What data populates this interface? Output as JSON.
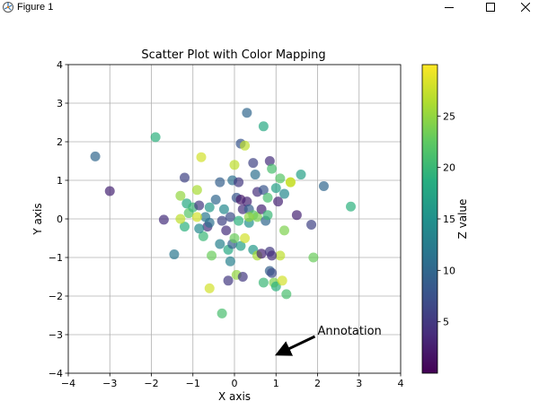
{
  "window": {
    "title": "Figure 1",
    "app_icon": "matplotlib-figure-icon",
    "controls": {
      "minimize_icon": "minimize-icon",
      "maximize_icon": "maximize-icon",
      "close_icon": "close-icon"
    }
  },
  "chart_data": {
    "type": "scatter",
    "title": "Scatter Plot with Color Mapping",
    "xlabel": "X axis",
    "ylabel": "Y axis",
    "xlim": [
      -4,
      4
    ],
    "ylim": [
      -4,
      4
    ],
    "xticks": [
      -4,
      -3,
      -2,
      -1,
      0,
      1,
      2,
      3,
      4
    ],
    "yticks": [
      -4,
      -3,
      -2,
      -1,
      0,
      1,
      2,
      3,
      4
    ],
    "xtick_labels": [
      "−4",
      "−3",
      "−2",
      "−1",
      "0",
      "1",
      "2",
      "3",
      "4"
    ],
    "ytick_labels": [
      "−4",
      "−3",
      "−2",
      "−1",
      "0",
      "1",
      "2",
      "3",
      "4"
    ],
    "grid": true,
    "colormap": "viridis",
    "marker_alpha": 0.7,
    "colorbar": {
      "label": "Z value",
      "range": [
        0,
        30
      ],
      "ticks": [
        5,
        10,
        15,
        20,
        25
      ],
      "tick_labels": [
        "5",
        "10",
        "15",
        "20",
        "25"
      ]
    },
    "annotation": {
      "text": "Annotation",
      "xy": [
        1.05,
        -3.5
      ],
      "xytext": [
        2.0,
        -3.0
      ]
    },
    "points": [
      {
        "x": -3.35,
        "y": 1.62,
        "z": 10
      },
      {
        "x": -3.0,
        "y": 0.72,
        "z": 3
      },
      {
        "x": -1.9,
        "y": 2.12,
        "z": 19
      },
      {
        "x": -1.7,
        "y": -0.02,
        "z": 4
      },
      {
        "x": -1.45,
        "y": -0.92,
        "z": 12
      },
      {
        "x": -1.3,
        "y": 0.6,
        "z": 25
      },
      {
        "x": -1.2,
        "y": 1.07,
        "z": 6
      },
      {
        "x": -1.2,
        "y": -0.2,
        "z": 19
      },
      {
        "x": -1.15,
        "y": 0.4,
        "z": 18
      },
      {
        "x": -1.1,
        "y": 0.15,
        "z": 22
      },
      {
        "x": -1.3,
        "y": 0.0,
        "z": 27
      },
      {
        "x": -1.0,
        "y": 0.3,
        "z": 20
      },
      {
        "x": -0.9,
        "y": 0.75,
        "z": 26
      },
      {
        "x": -0.85,
        "y": 0.35,
        "z": 5
      },
      {
        "x": -0.8,
        "y": 1.6,
        "z": 28
      },
      {
        "x": -0.75,
        "y": -0.45,
        "z": 20
      },
      {
        "x": -0.7,
        "y": 0.05,
        "z": 12
      },
      {
        "x": -0.65,
        "y": -0.2,
        "z": 4
      },
      {
        "x": -0.6,
        "y": 0.3,
        "z": 16
      },
      {
        "x": -0.6,
        "y": -1.8,
        "z": 28
      },
      {
        "x": -0.55,
        "y": -0.95,
        "z": 23
      },
      {
        "x": -0.85,
        "y": -0.25,
        "z": 14
      },
      {
        "x": -0.6,
        "y": -0.1,
        "z": 11
      },
      {
        "x": -0.45,
        "y": 0.5,
        "z": 10
      },
      {
        "x": -0.35,
        "y": 0.95,
        "z": 9
      },
      {
        "x": -0.35,
        "y": -0.65,
        "z": 13
      },
      {
        "x": -0.3,
        "y": -0.05,
        "z": 6
      },
      {
        "x": -0.3,
        "y": -2.45,
        "z": 21
      },
      {
        "x": -0.25,
        "y": 0.25,
        "z": 14
      },
      {
        "x": -0.2,
        "y": -0.3,
        "z": 4
      },
      {
        "x": -0.15,
        "y": -0.8,
        "z": 18
      },
      {
        "x": -0.15,
        "y": -1.6,
        "z": 5
      },
      {
        "x": -0.1,
        "y": 0.05,
        "z": 7
      },
      {
        "x": -0.1,
        "y": -1.1,
        "z": 13
      },
      {
        "x": -0.05,
        "y": 1.0,
        "z": 11
      },
      {
        "x": -0.05,
        "y": -0.65,
        "z": 9
      },
      {
        "x": 0.0,
        "y": 1.4,
        "z": 27
      },
      {
        "x": 0.0,
        "y": -0.5,
        "z": 23
      },
      {
        "x": 0.05,
        "y": 0.55,
        "z": 8
      },
      {
        "x": 0.05,
        "y": -1.45,
        "z": 25
      },
      {
        "x": 0.1,
        "y": 0.95,
        "z": 5
      },
      {
        "x": 0.1,
        "y": -0.05,
        "z": 19
      },
      {
        "x": 0.15,
        "y": 1.95,
        "z": 8
      },
      {
        "x": 0.15,
        "y": 0.5,
        "z": 2
      },
      {
        "x": 0.15,
        "y": -0.7,
        "z": 17
      },
      {
        "x": 0.2,
        "y": 0.25,
        "z": 4
      },
      {
        "x": 0.2,
        "y": -1.5,
        "z": 5
      },
      {
        "x": 0.25,
        "y": 1.9,
        "z": 27
      },
      {
        "x": 0.25,
        "y": -0.5,
        "z": 28
      },
      {
        "x": 0.3,
        "y": 2.75,
        "z": 10
      },
      {
        "x": 0.3,
        "y": 0.45,
        "z": 3
      },
      {
        "x": 0.35,
        "y": 0.25,
        "z": 9
      },
      {
        "x": 0.35,
        "y": -0.1,
        "z": 15
      },
      {
        "x": 0.45,
        "y": 1.45,
        "z": 6
      },
      {
        "x": 0.45,
        "y": 0.1,
        "z": 22
      },
      {
        "x": 0.45,
        "y": -0.8,
        "z": 16
      },
      {
        "x": 0.5,
        "y": 1.15,
        "z": 11
      },
      {
        "x": 0.55,
        "y": 0.7,
        "z": 4
      },
      {
        "x": 0.55,
        "y": 0.05,
        "z": 24
      },
      {
        "x": 0.55,
        "y": -0.95,
        "z": 26
      },
      {
        "x": 0.65,
        "y": 0.25,
        "z": 3
      },
      {
        "x": 0.65,
        "y": -0.9,
        "z": 3
      },
      {
        "x": 0.7,
        "y": 2.4,
        "z": 18
      },
      {
        "x": 0.7,
        "y": 0.75,
        "z": 8
      },
      {
        "x": 0.7,
        "y": -1.65,
        "z": 20
      },
      {
        "x": 0.75,
        "y": -0.05,
        "z": 10
      },
      {
        "x": 0.8,
        "y": 0.55,
        "z": 21
      },
      {
        "x": 0.8,
        "y": 0.1,
        "z": 20
      },
      {
        "x": 0.85,
        "y": 1.5,
        "z": 4
      },
      {
        "x": 0.85,
        "y": -0.85,
        "z": 5
      },
      {
        "x": 0.85,
        "y": -1.35,
        "z": 9
      },
      {
        "x": 0.9,
        "y": 1.3,
        "z": 21
      },
      {
        "x": 0.9,
        "y": -1.4,
        "z": 7
      },
      {
        "x": 0.95,
        "y": -1.65,
        "z": 24
      },
      {
        "x": 1.0,
        "y": 0.8,
        "z": 17
      },
      {
        "x": 1.0,
        "y": -1.75,
        "z": 19
      },
      {
        "x": 1.05,
        "y": 0.45,
        "z": 3
      },
      {
        "x": 1.1,
        "y": 1.05,
        "z": 22
      },
      {
        "x": 1.1,
        "y": -0.95,
        "z": 27
      },
      {
        "x": 1.15,
        "y": -1.6,
        "z": 28
      },
      {
        "x": 1.2,
        "y": 0.65,
        "z": 14
      },
      {
        "x": 1.2,
        "y": -0.3,
        "z": 24
      },
      {
        "x": 1.25,
        "y": -1.95,
        "z": 21
      },
      {
        "x": 1.35,
        "y": 0.95,
        "z": 29
      },
      {
        "x": 1.5,
        "y": 0.1,
        "z": 3
      },
      {
        "x": 1.6,
        "y": 1.15,
        "z": 17
      },
      {
        "x": 1.85,
        "y": -0.15,
        "z": 6
      },
      {
        "x": 1.9,
        "y": -1.0,
        "z": 23
      },
      {
        "x": 2.15,
        "y": 0.85,
        "z": 10
      },
      {
        "x": 2.8,
        "y": 0.32,
        "z": 19
      },
      {
        "x": 0.35,
        "y": 0.05,
        "z": 25
      },
      {
        "x": -0.9,
        "y": 0.05,
        "z": 28
      },
      {
        "x": 0.9,
        "y": -0.95,
        "z": 4
      },
      {
        "x": 1.35,
        "y": 0.95,
        "z": 27
      }
    ]
  }
}
